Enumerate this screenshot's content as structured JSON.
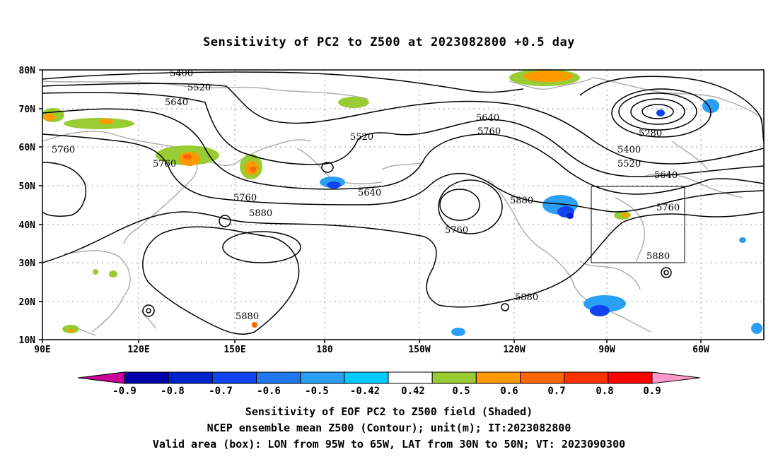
{
  "title": "Sensitivity of PC2 to Z500 at 2023082800 +0.5 day",
  "map": {
    "lat_ticks": [
      "80N",
      "70N",
      "60N",
      "50N",
      "40N",
      "30N",
      "20N",
      "10N"
    ],
    "lon_ticks": [
      "90E",
      "120E",
      "150E",
      "180",
      "150W",
      "120W",
      "90W",
      "60W"
    ],
    "contour_labels": [
      "5400",
      "5520",
      "5640",
      "5760",
      "5760",
      "5760",
      "5880",
      "5520",
      "5640",
      "5640",
      "5760",
      "5880",
      "5760",
      "5280",
      "5400",
      "5520",
      "5640",
      "5760",
      "5880",
      "5880",
      "5880"
    ],
    "valid_box": {
      "lon_west": "95W",
      "lon_east": "65W",
      "lat_south": "30N",
      "lat_north": "50N"
    }
  },
  "colorbar": {
    "labels": [
      "-0.9",
      "-0.8",
      "-0.7",
      "-0.6",
      "-0.5",
      "-0.42",
      "0.42",
      "0.5",
      "0.6",
      "0.7",
      "0.8",
      "0.9"
    ],
    "colors": [
      "#cc0099",
      "#0000aa",
      "#0022cc",
      "#1144ee",
      "#2277ee",
      "#2a9ff5",
      "#00ccff",
      "#ffffff",
      "#99cc33",
      "#ff9900",
      "#ff6600",
      "#ff3300",
      "#ff0000",
      "#ff99cc"
    ]
  },
  "captions": {
    "line1": "Sensitivity of EOF PC2 to Z500 field (Shaded)",
    "line2": "NCEP ensemble mean Z500 (Contour); unit(m); IT:2023082800",
    "line3": "Valid area (box): LON from 95W to 65W, LAT from 30N to 50N; VT: 2023090300"
  }
}
